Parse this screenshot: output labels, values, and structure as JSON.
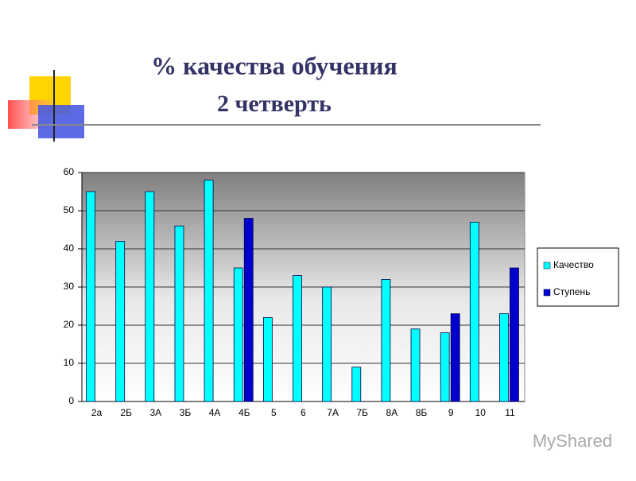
{
  "chart_data": {
    "type": "bar",
    "title": "% качества обучения",
    "subtitle": "2 четверть",
    "categories": [
      "2а",
      "2Б",
      "3А",
      "3Б",
      "4А",
      "4Б",
      "5",
      "6",
      "7А",
      "7Б",
      "8А",
      "8Б",
      "9",
      "10",
      "11"
    ],
    "series": [
      {
        "name": "Качество",
        "color": "#00ffff",
        "values": [
          55,
          42,
          55,
          46,
          58,
          35,
          22,
          33,
          30,
          9,
          32,
          19,
          18,
          47,
          23
        ]
      },
      {
        "name": "Ступень",
        "color": "#0000cc",
        "values": [
          null,
          null,
          null,
          null,
          null,
          48,
          null,
          null,
          null,
          null,
          null,
          null,
          23,
          null,
          35
        ]
      }
    ],
    "ylim": [
      0,
      60
    ],
    "yticks": [
      0,
      10,
      20,
      30,
      40,
      50,
      60
    ],
    "grid": true,
    "legend": "right"
  },
  "watermark": "MyShared"
}
